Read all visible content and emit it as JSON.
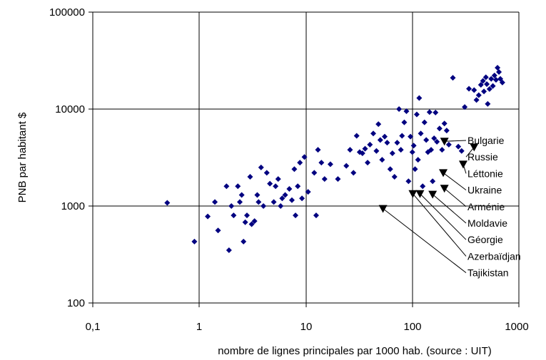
{
  "chart_data": {
    "type": "scatter",
    "xlabel": "nombre de lignes principales par 1000 hab. (source : UIT)",
    "ylabel": "PNB par habitant $",
    "x_scale": "log",
    "y_scale": "log",
    "xlim": [
      0.1,
      1000
    ],
    "ylim": [
      100,
      100000
    ],
    "x_ticks": [
      "0,1",
      "1",
      "10",
      "100",
      "1000"
    ],
    "y_ticks": [
      "100",
      "1000",
      "10000",
      "100000"
    ],
    "grid": true,
    "marker_color": "#000080",
    "points": [
      [
        0.5,
        1080
      ],
      [
        0.9,
        430
      ],
      [
        1.2,
        780
      ],
      [
        1.4,
        1100
      ],
      [
        1.5,
        560
      ],
      [
        1.8,
        1600
      ],
      [
        1.9,
        350
      ],
      [
        2.0,
        1000
      ],
      [
        2.1,
        800
      ],
      [
        2.3,
        1600
      ],
      [
        2.4,
        1100
      ],
      [
        2.5,
        1300
      ],
      [
        2.6,
        430
      ],
      [
        2.7,
        680
      ],
      [
        2.8,
        800
      ],
      [
        3.0,
        2000
      ],
      [
        3.1,
        650
      ],
      [
        3.3,
        700
      ],
      [
        3.5,
        1300
      ],
      [
        3.6,
        1100
      ],
      [
        3.8,
        2500
      ],
      [
        4.0,
        1000
      ],
      [
        4.3,
        2200
      ],
      [
        4.6,
        1700
      ],
      [
        5.0,
        1100
      ],
      [
        5.2,
        1600
      ],
      [
        5.5,
        1900
      ],
      [
        5.8,
        1000
      ],
      [
        6.0,
        1200
      ],
      [
        6.4,
        1300
      ],
      [
        7.0,
        1500
      ],
      [
        7.4,
        1150
      ],
      [
        7.8,
        2400
      ],
      [
        8.0,
        800
      ],
      [
        8.4,
        1600
      ],
      [
        8.8,
        2800
      ],
      [
        9.2,
        1200
      ],
      [
        9.7,
        3200
      ],
      [
        10.5,
        1400
      ],
      [
        12.0,
        2200
      ],
      [
        12.5,
        800
      ],
      [
        13.0,
        3800
      ],
      [
        14.0,
        2800
      ],
      [
        15.0,
        1900
      ],
      [
        17.0,
        2700
      ],
      [
        20.0,
        1900
      ],
      [
        24.0,
        2600
      ],
      [
        26.0,
        3800
      ],
      [
        28.0,
        2200
      ],
      [
        30.0,
        5300
      ],
      [
        32.0,
        3600
      ],
      [
        34.0,
        3500
      ],
      [
        36.0,
        3900
      ],
      [
        38.0,
        2800
      ],
      [
        40.0,
        4300
      ],
      [
        43.0,
        5600
      ],
      [
        46.0,
        3700
      ],
      [
        48.0,
        7000
      ],
      [
        50.0,
        4800
      ],
      [
        52.0,
        3000
      ],
      [
        55.0,
        5200
      ],
      [
        58.0,
        4500
      ],
      [
        62.0,
        2400
      ],
      [
        65.0,
        3500
      ],
      [
        68.0,
        2000
      ],
      [
        72.0,
        4500
      ],
      [
        75.0,
        10000
      ],
      [
        78.0,
        3800
      ],
      [
        80.0,
        5300
      ],
      [
        84.0,
        7300
      ],
      [
        88.0,
        9500
      ],
      [
        92.0,
        1800
      ],
      [
        96.0,
        5200
      ],
      [
        100.0,
        3600
      ],
      [
        103.0,
        4200
      ],
      [
        106.0,
        2400
      ],
      [
        110.0,
        8800
      ],
      [
        113.0,
        3000
      ],
      [
        116.0,
        13000
      ],
      [
        120.0,
        5600
      ],
      [
        125.0,
        1600
      ],
      [
        130.0,
        7300
      ],
      [
        135.0,
        4800
      ],
      [
        140.0,
        3600
      ],
      [
        145.0,
        9300
      ],
      [
        150.0,
        3800
      ],
      [
        155.0,
        1800
      ],
      [
        160.0,
        5000
      ],
      [
        165.0,
        9200
      ],
      [
        170.0,
        4600
      ],
      [
        180.0,
        6300
      ],
      [
        190.0,
        3800
      ],
      [
        200.0,
        7100
      ],
      [
        210.0,
        6000
      ],
      [
        220.0,
        4300
      ],
      [
        240.0,
        21000
      ],
      [
        270.0,
        4100
      ],
      [
        290.0,
        3700
      ],
      [
        310.0,
        10500
      ],
      [
        340.0,
        16200
      ],
      [
        380.0,
        15700
      ],
      [
        400.0,
        12400
      ],
      [
        420.0,
        13900
      ],
      [
        440.0,
        17800
      ],
      [
        460.0,
        19500
      ],
      [
        470.0,
        15200
      ],
      [
        490.0,
        21300
      ],
      [
        500.0,
        18100
      ],
      [
        510.0,
        11300
      ],
      [
        530.0,
        16100
      ],
      [
        550.0,
        20500
      ],
      [
        570.0,
        17300
      ],
      [
        590.0,
        22200
      ],
      [
        610.0,
        20000
      ],
      [
        630.0,
        26700
      ],
      [
        650.0,
        24100
      ],
      [
        670.0,
        20500
      ],
      [
        700.0,
        18800
      ]
    ],
    "highlighted": [
      {
        "name": "Bulgarie",
        "x": 200,
        "y": 4650
      },
      {
        "name": "Russie",
        "x": 380,
        "y": 4050
      },
      {
        "name": "Léttonie",
        "x": 300,
        "y": 2700
      },
      {
        "name": "Ukraine",
        "x": 195,
        "y": 2200
      },
      {
        "name": "Arménie",
        "x": 200,
        "y": 1520
      },
      {
        "name": "Moldavie",
        "x": 155,
        "y": 1320
      },
      {
        "name": "Géorgie",
        "x": 118,
        "y": 1340
      },
      {
        "name": "Azerbaïdjan",
        "x": 101,
        "y": 1340
      },
      {
        "name": "Tajikistan",
        "x": 53,
        "y": 940
      }
    ]
  }
}
